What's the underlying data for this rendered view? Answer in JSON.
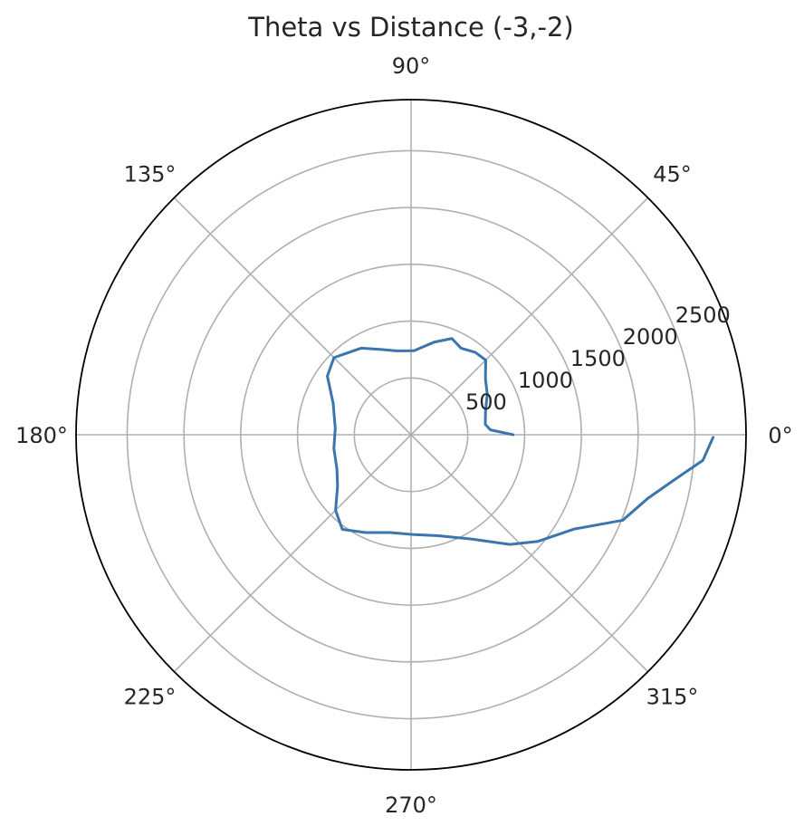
{
  "chart_data": {
    "type": "line",
    "projection": "polar",
    "title": "Theta vs Distance (-3,-2)",
    "theta_unit": "degrees",
    "theta_tick_labels": [
      "0°",
      "45°",
      "90°",
      "135°",
      "180°",
      "225°",
      "270°",
      "315°"
    ],
    "theta_ticks": [
      0,
      45,
      90,
      135,
      180,
      225,
      270,
      315
    ],
    "r_ticks": [
      500,
      1000,
      1500,
      2000,
      2500
    ],
    "r_tick_labels": [
      "500",
      "1000",
      "1500",
      "2000",
      "2500"
    ],
    "r_tick_label_angle": 22.5,
    "rlim": [
      0,
      2950
    ],
    "grid": true,
    "series": [
      {
        "color": "#3b75af",
        "points": [
          {
            "theta": 0,
            "r": 900
          },
          {
            "theta": 3.5,
            "r": 700
          },
          {
            "theta": 8,
            "r": 660
          },
          {
            "theta": 18,
            "r": 690
          },
          {
            "theta": 28,
            "r": 760
          },
          {
            "theta": 37,
            "r": 820
          },
          {
            "theta": 45,
            "r": 930
          },
          {
            "theta": 52,
            "r": 920
          },
          {
            "theta": 60,
            "r": 880
          },
          {
            "theta": 67,
            "r": 920
          },
          {
            "theta": 76,
            "r": 840
          },
          {
            "theta": 88,
            "r": 740
          },
          {
            "theta": 100,
            "r": 750
          },
          {
            "theta": 110,
            "r": 800
          },
          {
            "theta": 120,
            "r": 880
          },
          {
            "theta": 135,
            "r": 960
          },
          {
            "theta": 145,
            "r": 900
          },
          {
            "theta": 158,
            "r": 740
          },
          {
            "theta": 175,
            "r": 670
          },
          {
            "theta": 190,
            "r": 690
          },
          {
            "theta": 205,
            "r": 720
          },
          {
            "theta": 215,
            "r": 790
          },
          {
            "theta": 225,
            "r": 940
          },
          {
            "theta": 234,
            "r": 1030
          },
          {
            "theta": 245,
            "r": 950
          },
          {
            "theta": 258,
            "r": 880
          },
          {
            "theta": 272,
            "r": 880
          },
          {
            "theta": 285,
            "r": 920
          },
          {
            "theta": 300,
            "r": 1060
          },
          {
            "theta": 312,
            "r": 1300
          },
          {
            "theta": 320,
            "r": 1460
          },
          {
            "theta": 330,
            "r": 1660
          },
          {
            "theta": 338,
            "r": 2010
          },
          {
            "theta": 345,
            "r": 2160
          },
          {
            "theta": 350,
            "r": 2340
          },
          {
            "theta": 355,
            "r": 2580
          },
          {
            "theta": 359.5,
            "r": 2660
          }
        ]
      }
    ]
  }
}
